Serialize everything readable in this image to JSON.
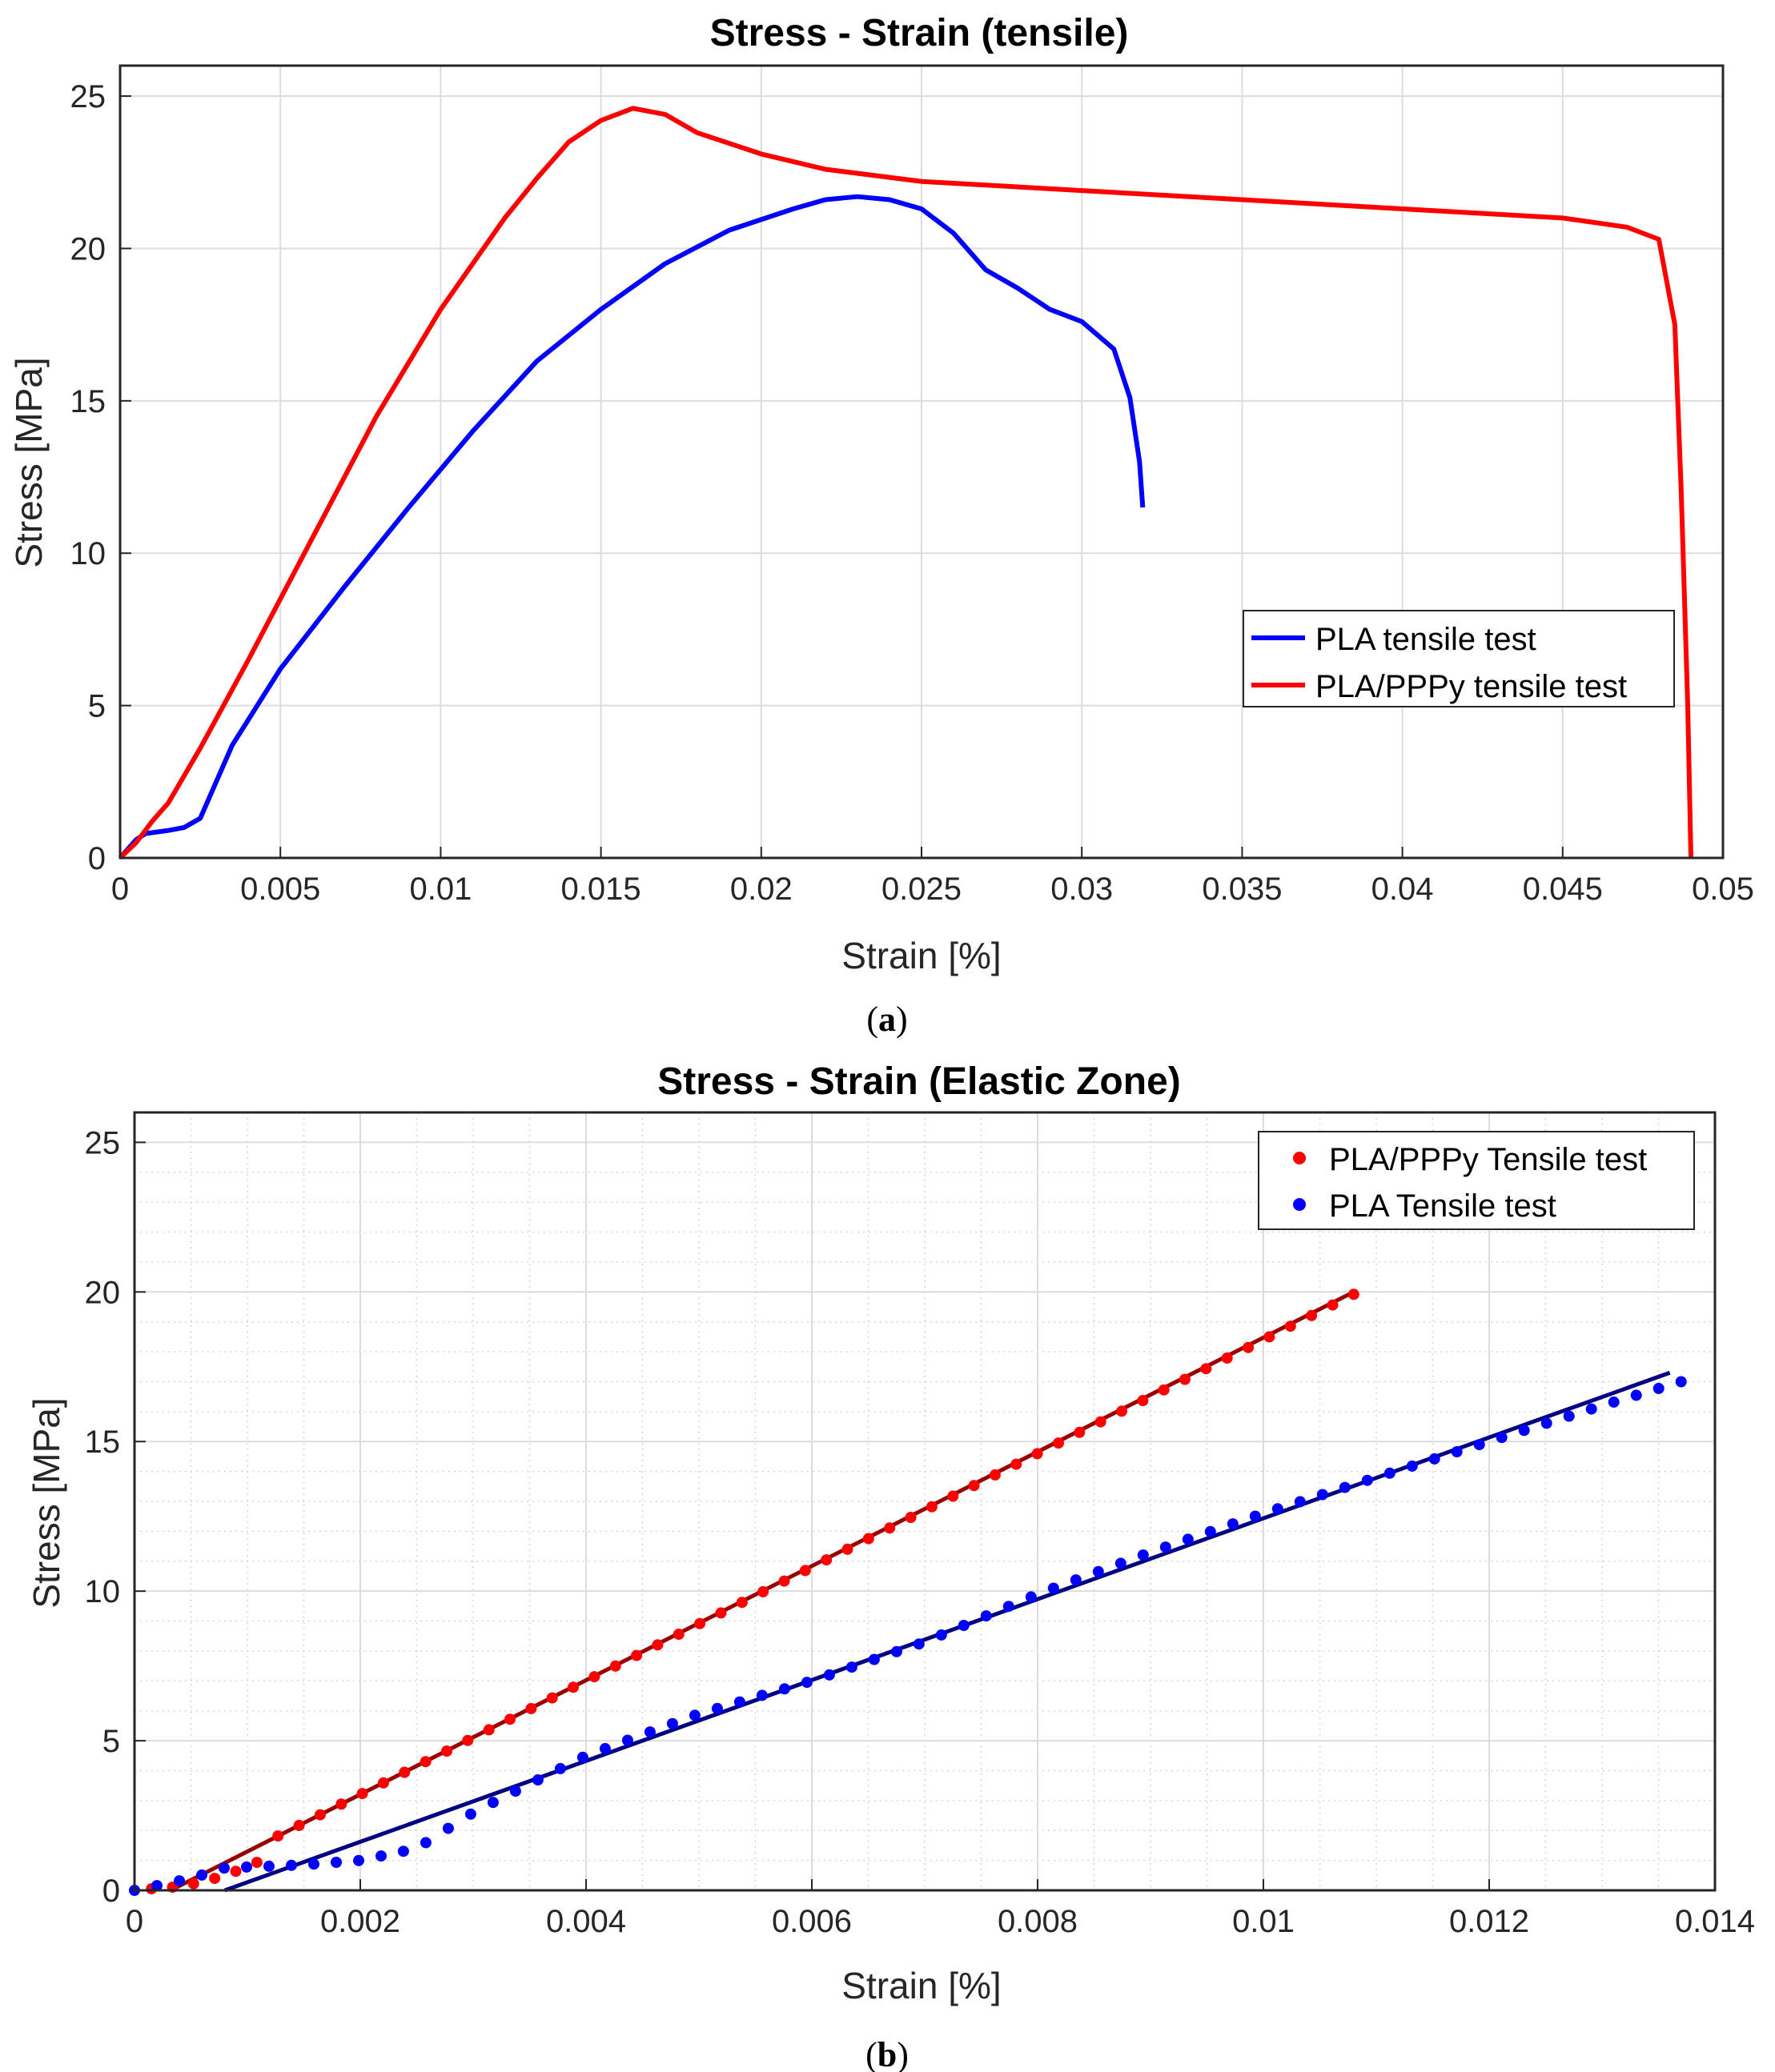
{
  "chart_data": [
    {
      "type": "line",
      "title": "Stress - Strain (tensile)",
      "xlabel": "Strain [%]",
      "ylabel": "Stress [MPa]",
      "xlim": [
        0,
        0.05
      ],
      "ylim": [
        0,
        26
      ],
      "xticks": [
        0,
        0.005,
        0.01,
        0.015,
        0.02,
        0.025,
        0.03,
        0.035,
        0.04,
        0.045,
        0.05
      ],
      "xtick_labels": [
        "0",
        "0.005",
        "0.01",
        "0.015",
        "0.02",
        "0.025",
        "0.03",
        "0.035",
        "0.04",
        "0.045",
        "0.05"
      ],
      "yticks": [
        0,
        5,
        10,
        15,
        20,
        25
      ],
      "ytick_labels": [
        "0",
        "5",
        "10",
        "15",
        "20",
        "25"
      ],
      "grid": true,
      "legend_position": "right",
      "caption_letter": "a",
      "series": [
        {
          "name": "PLA tensile test",
          "color": "#0000ff",
          "x": [
            0,
            0.0005,
            0.0008,
            0.0015,
            0.002,
            0.0025,
            0.0035,
            0.005,
            0.007,
            0.009,
            0.011,
            0.013,
            0.015,
            0.017,
            0.019,
            0.021,
            0.022,
            0.023,
            0.024,
            0.025,
            0.026,
            0.027,
            0.028,
            0.029,
            0.03,
            0.031,
            0.0315,
            0.0318,
            0.0319
          ],
          "y": [
            0,
            0.6,
            0.8,
            0.9,
            1.0,
            1.3,
            3.7,
            6.2,
            8.9,
            11.5,
            14.0,
            16.3,
            18.0,
            19.5,
            20.6,
            21.3,
            21.6,
            21.7,
            21.6,
            21.3,
            20.5,
            19.3,
            18.7,
            18.0,
            17.6,
            16.7,
            15.1,
            13.0,
            11.5
          ]
        },
        {
          "name": "PLA/PPPy tensile test",
          "color": "#ff0000",
          "x": [
            0,
            0.0005,
            0.001,
            0.0015,
            0.0025,
            0.004,
            0.006,
            0.008,
            0.01,
            0.012,
            0.013,
            0.014,
            0.015,
            0.016,
            0.017,
            0.018,
            0.02,
            0.022,
            0.025,
            0.03,
            0.035,
            0.04,
            0.045,
            0.047,
            0.048,
            0.0485,
            0.0487,
            0.0489,
            0.049
          ],
          "y": [
            0,
            0.5,
            1.2,
            1.8,
            3.6,
            6.5,
            10.5,
            14.5,
            18.0,
            21.0,
            22.3,
            23.5,
            24.2,
            24.6,
            24.4,
            23.8,
            23.1,
            22.6,
            22.2,
            21.9,
            21.6,
            21.3,
            21.0,
            20.7,
            20.3,
            17.5,
            12.0,
            5.0,
            0
          ]
        }
      ]
    },
    {
      "type": "scatter",
      "title": "Stress - Strain (Elastic Zone)",
      "xlabel": "Strain [%]",
      "ylabel": "Stress [MPa]",
      "xlim": [
        0,
        0.014
      ],
      "ylim": [
        0,
        26
      ],
      "xticks": [
        0,
        0.002,
        0.004,
        0.006,
        0.008,
        0.01,
        0.012,
        0.014
      ],
      "xtick_labels": [
        "0",
        "0.002",
        "0.004",
        "0.006",
        "0.008",
        "0.01",
        "0.012",
        "0.014"
      ],
      "yticks": [
        0,
        5,
        10,
        15,
        20,
        25
      ],
      "ytick_labels": [
        "0",
        "5",
        "10",
        "15",
        "20",
        "25"
      ],
      "grid": true,
      "minor_grid": true,
      "legend_position": "top-right",
      "caption_letter": "b",
      "series": [
        {
          "name": "PLA/PPPy Tensile test",
          "color": "#ff0000",
          "kind": "points",
          "x_start": 0.00015,
          "x_end": 0.0108,
          "count": 58,
          "fit_slope": 1900,
          "fit_intercept": -0.6,
          "fit_line": {
            "color": "#990000",
            "x": [
              0.00032,
              0.0108
            ],
            "y": [
              0,
              20.0
            ]
          }
        },
        {
          "name": "PLA Tensile test",
          "color": "#0000ff",
          "kind": "points",
          "x_start": 0.0,
          "x_end": 0.0137,
          "count": 70,
          "fit_line": {
            "color": "#000080",
            "x": [
              0.0008,
              0.0136
            ],
            "y": [
              0,
              17.3
            ]
          }
        }
      ]
    }
  ],
  "captions": {
    "a": "(a)",
    "b": "(b)"
  }
}
